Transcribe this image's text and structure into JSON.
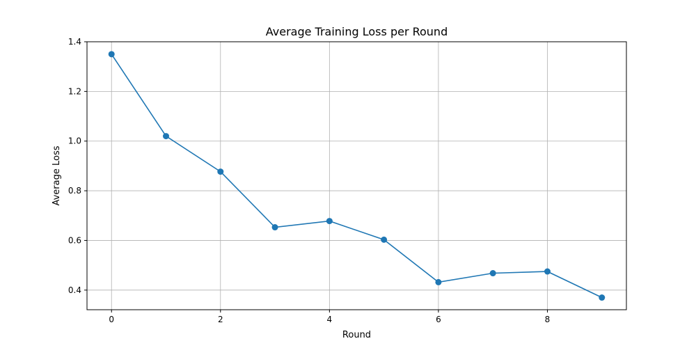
{
  "chart_data": {
    "type": "line",
    "title": "Average Training Loss per Round",
    "xlabel": "Round",
    "ylabel": "Average Loss",
    "x": [
      0,
      1,
      2,
      3,
      4,
      5,
      6,
      7,
      8,
      9
    ],
    "series": [
      {
        "values": [
          1.35,
          1.02,
          0.877,
          0.653,
          0.678,
          0.603,
          0.432,
          0.468,
          0.475,
          0.37
        ],
        "color": "#1f77b4",
        "marker": "circle"
      }
    ],
    "xlim": [
      -0.45,
      9.45
    ],
    "ylim": [
      0.321,
      1.4
    ],
    "x_ticks": [
      0,
      2,
      4,
      6,
      8
    ],
    "x_tick_labels": [
      "0",
      "2",
      "4",
      "6",
      "8"
    ],
    "y_ticks": [
      0.4,
      0.6,
      0.8,
      1.0,
      1.2,
      1.4
    ],
    "y_tick_labels": [
      "0.4",
      "0.6",
      "0.8",
      "1.0",
      "1.2",
      "1.4"
    ],
    "grid": true,
    "legend": "none"
  }
}
